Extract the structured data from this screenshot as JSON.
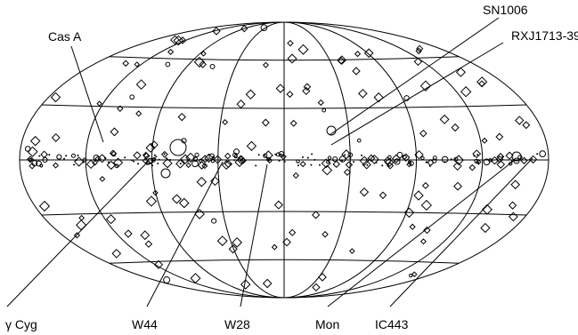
{
  "labels": {
    "sn1006": "SN1006",
    "cas_a": "Cas A",
    "rxj1713": "RXJ1713-39",
    "gamma_cyg": "γ Cyg",
    "w44": "W44",
    "w28": "W28",
    "mon": "Mon",
    "ic443": "IC443"
  },
  "map": {
    "projection": "Aitoff-Hammer all-sky",
    "meridians": 9,
    "parallels": 5,
    "marker_types": [
      "diamond",
      "circle",
      "dot"
    ]
  }
}
